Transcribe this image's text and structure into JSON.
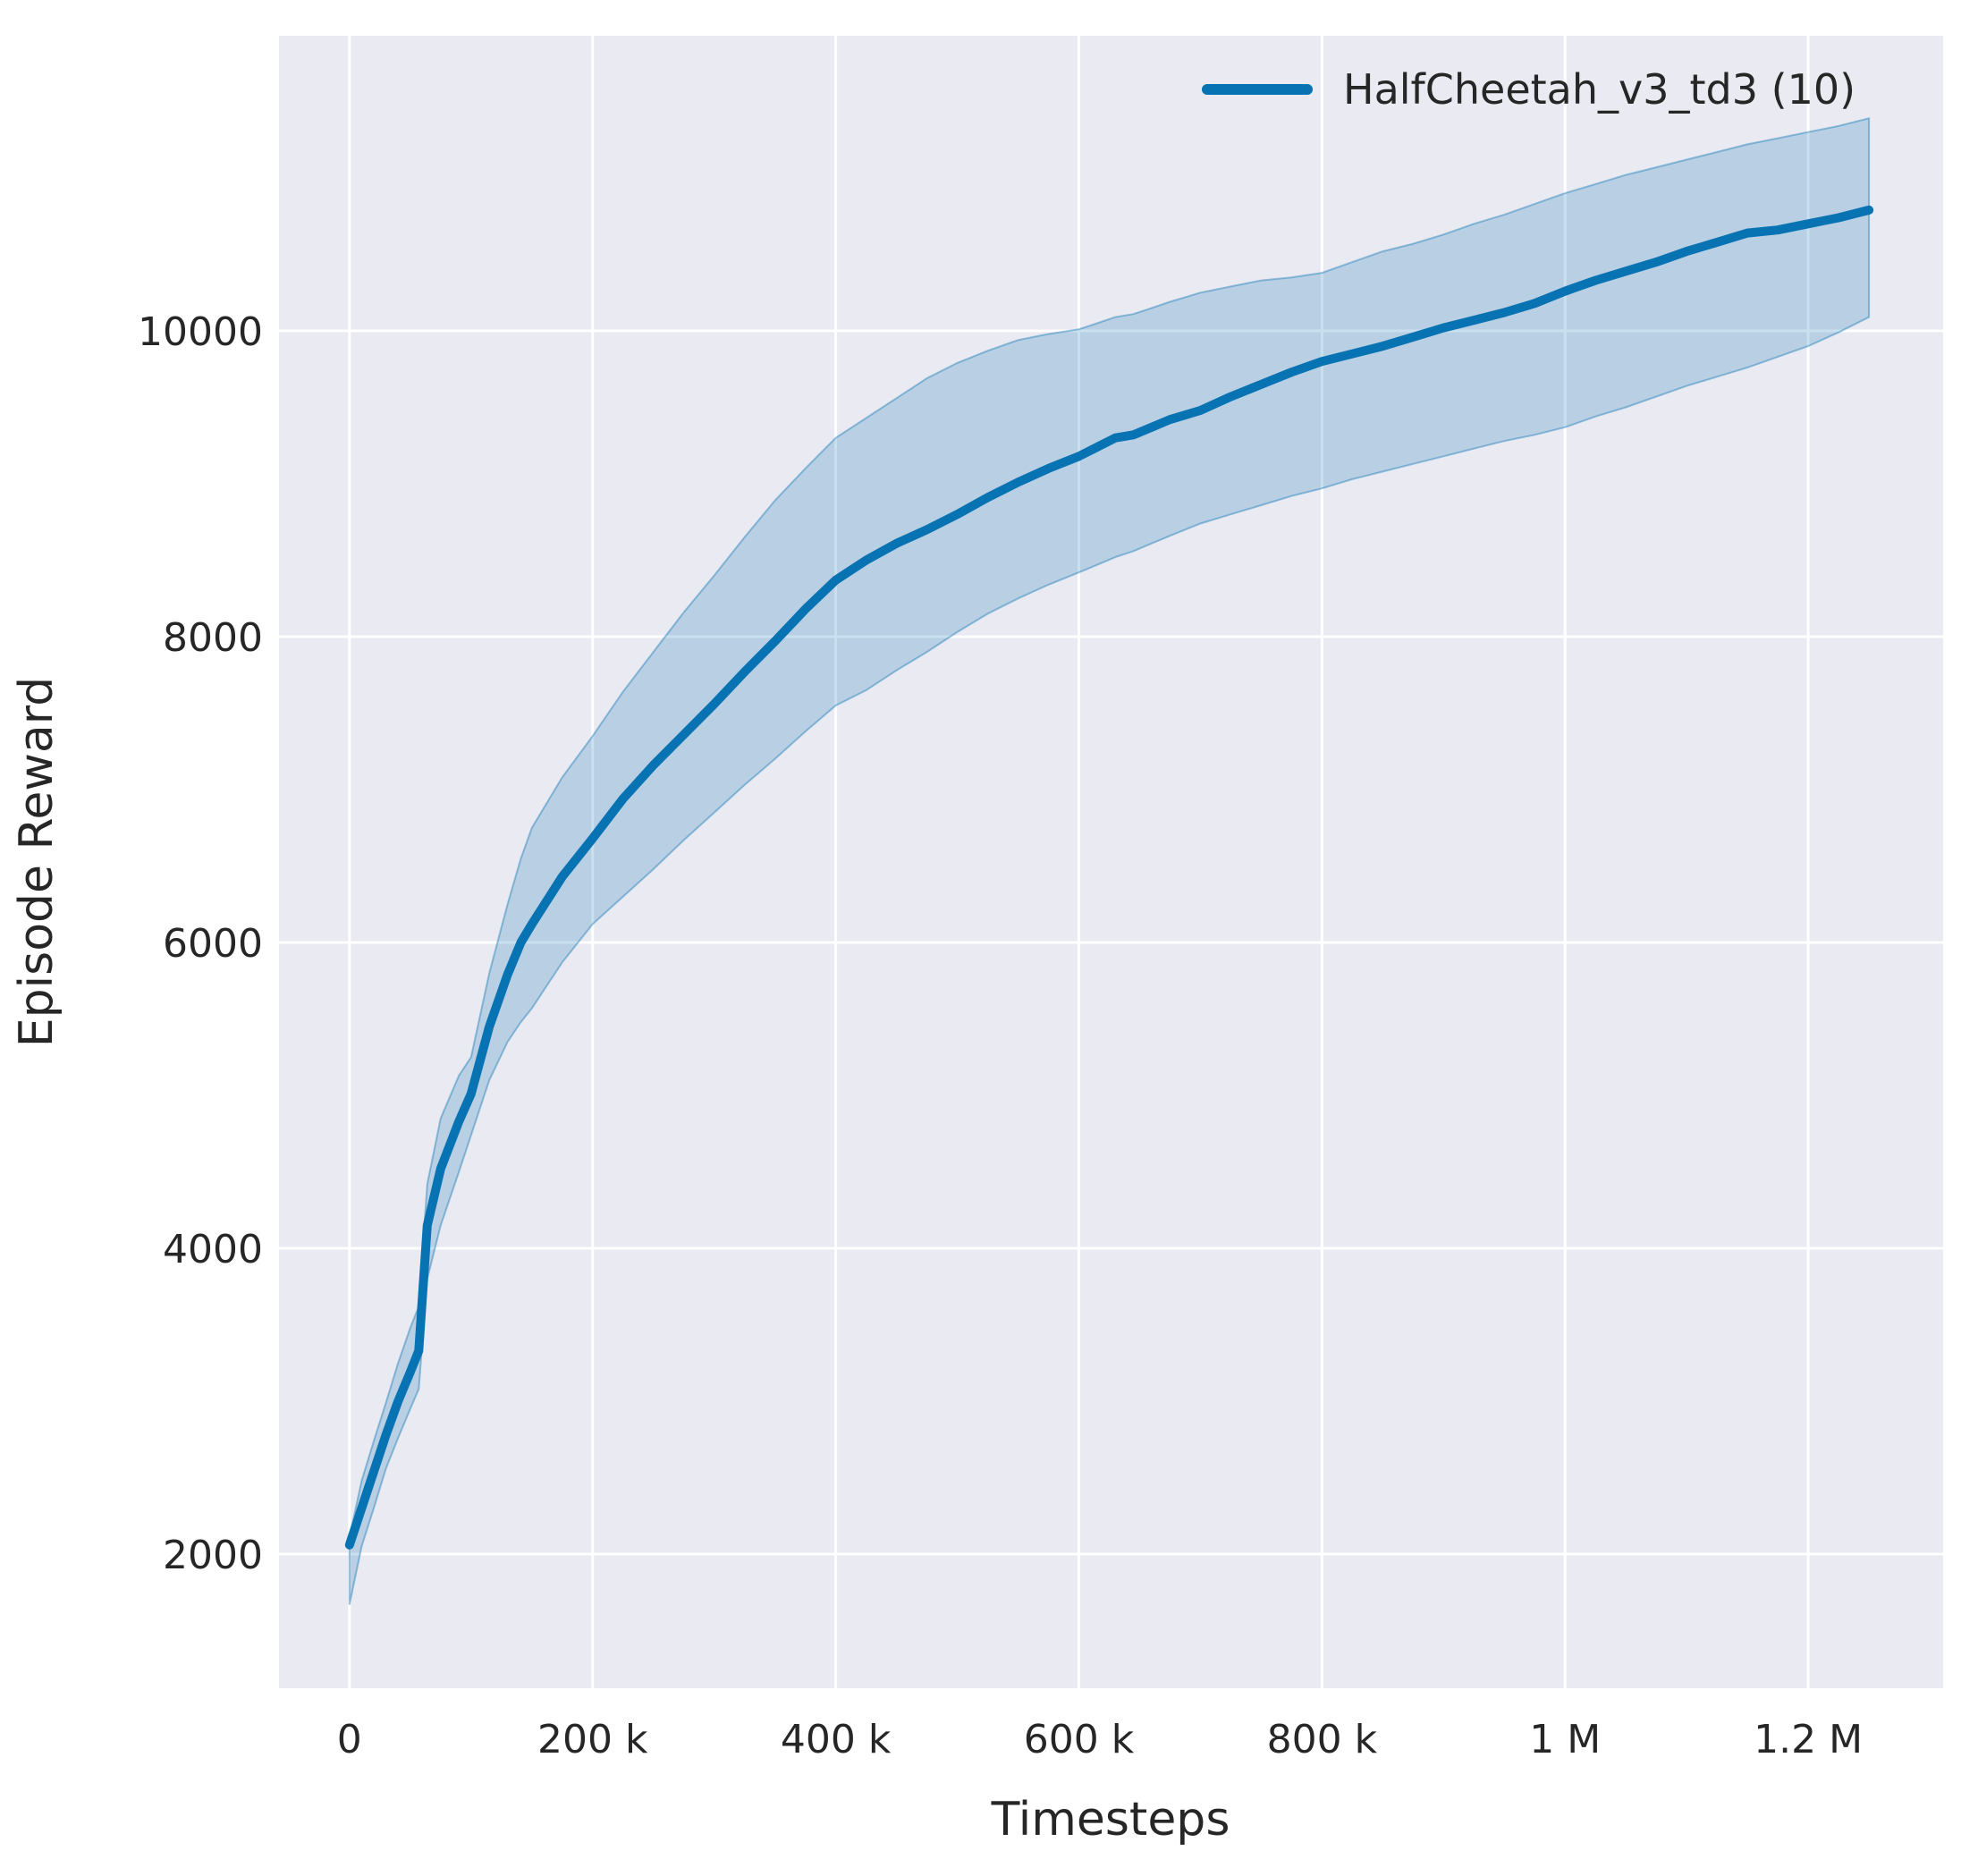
{
  "chart_data": {
    "type": "line",
    "title": "",
    "xlabel": "Timesteps",
    "ylabel": "Episode Reward",
    "grid": true,
    "legend_position": "upper right",
    "xlim": [
      -58000,
      1311000
    ],
    "ylim": [
      1123,
      11930
    ],
    "xticks": {
      "values": [
        0,
        200000,
        400000,
        600000,
        800000,
        1000000,
        1200000
      ],
      "labels": [
        "0",
        "200 k",
        "400 k",
        "600 k",
        "800 k",
        "1 M",
        "1.2 M"
      ]
    },
    "yticks": {
      "values": [
        2000,
        4000,
        6000,
        8000,
        10000
      ],
      "labels": [
        "2000",
        "4000",
        "6000",
        "8000",
        "10000"
      ]
    },
    "series": [
      {
        "name": "HalfCheetah_v3_td3 (10)",
        "color": "#0873b2",
        "band_fill_opacity": 0.22,
        "band_edge_opacity": 0.4,
        "x": [
          0,
          10000,
          20000,
          30000,
          40000,
          50000,
          57000,
          64000,
          75000,
          90000,
          100000,
          115000,
          130000,
          141000,
          150000,
          175000,
          200000,
          225000,
          250000,
          275000,
          300000,
          325000,
          350000,
          375000,
          400000,
          425000,
          450000,
          475000,
          500000,
          525000,
          550000,
          575000,
          600000,
          615000,
          630000,
          645000,
          660000,
          675000,
          700000,
          725000,
          750000,
          775000,
          800000,
          825000,
          850000,
          875000,
          900000,
          925000,
          950000,
          975000,
          1000000,
          1025000,
          1050000,
          1075000,
          1100000,
          1125000,
          1150000,
          1175000,
          1200000,
          1225000,
          1250000
        ],
        "mean": [
          2060,
          2300,
          2540,
          2780,
          3000,
          3190,
          3330,
          4150,
          4520,
          4830,
          5010,
          5450,
          5790,
          6000,
          6120,
          6430,
          6680,
          6940,
          7160,
          7360,
          7560,
          7770,
          7970,
          8180,
          8370,
          8500,
          8610,
          8700,
          8800,
          8910,
          9010,
          9100,
          9180,
          9240,
          9300,
          9320,
          9370,
          9420,
          9480,
          9570,
          9650,
          9730,
          9800,
          9850,
          9900,
          9960,
          10020,
          10070,
          10120,
          10180,
          10260,
          10330,
          10390,
          10450,
          10520,
          10580,
          10640,
          10660,
          10700,
          10740,
          10790
        ],
        "lo": [
          1670,
          2050,
          2300,
          2560,
          2760,
          2950,
          3080,
          3800,
          4150,
          4500,
          4740,
          5100,
          5350,
          5480,
          5570,
          5870,
          6120,
          6300,
          6480,
          6670,
          6850,
          7030,
          7200,
          7380,
          7550,
          7650,
          7780,
          7900,
          8030,
          8150,
          8250,
          8340,
          8420,
          8470,
          8520,
          8560,
          8610,
          8660,
          8740,
          8800,
          8860,
          8920,
          8970,
          9030,
          9080,
          9130,
          9180,
          9230,
          9280,
          9320,
          9370,
          9440,
          9500,
          9570,
          9640,
          9700,
          9760,
          9830,
          9900,
          9990,
          10090
        ],
        "hi": [
          2110,
          2480,
          2740,
          2990,
          3250,
          3480,
          3620,
          4420,
          4850,
          5130,
          5250,
          5800,
          6250,
          6550,
          6750,
          7080,
          7350,
          7640,
          7900,
          8160,
          8400,
          8650,
          8890,
          9100,
          9300,
          9430,
          9560,
          9690,
          9790,
          9870,
          9940,
          9980,
          10010,
          10050,
          10090,
          10110,
          10150,
          10190,
          10250,
          10290,
          10330,
          10350,
          10380,
          10450,
          10520,
          10570,
          10630,
          10700,
          10760,
          10830,
          10900,
          10960,
          11020,
          11070,
          11120,
          11170,
          11220,
          11260,
          11300,
          11340,
          11390
        ]
      }
    ]
  },
  "legend": {
    "entries": [
      {
        "label": "HalfCheetah_v3_td3 (10)"
      }
    ]
  },
  "colors": {
    "figure_background": "#ffffff",
    "plot_background": "#eaeaf2",
    "grid_line": "#ffffff",
    "text": "#262626",
    "series_line": "#0873b2"
  }
}
